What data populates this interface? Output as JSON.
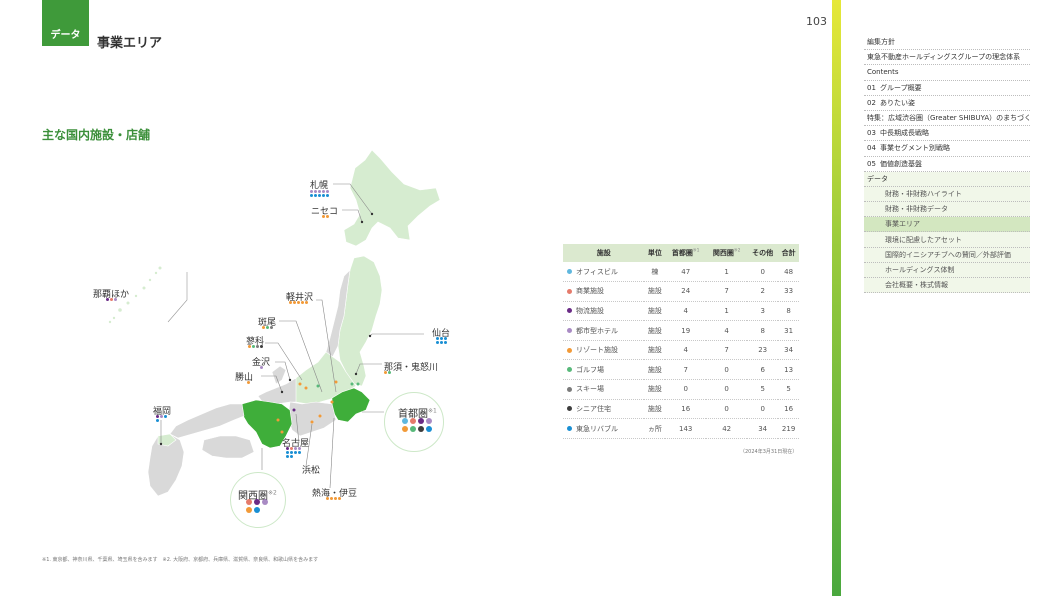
{
  "header": {
    "section_tag": "データ",
    "title": "事業エリア",
    "page_number": "103"
  },
  "subtitle": "主な国内施設・店舗",
  "colors": {
    "office": "#5fb7de",
    "commercial": "#e57b6b",
    "logistics": "#6a2b86",
    "hotel": "#a98bc4",
    "resort": "#f29a38",
    "golf": "#58b97a",
    "ski": "#7b7b7b",
    "senior": "#3d3d3d",
    "rehouse": "#1a8fd3",
    "land": "#d6ecd0",
    "land_highlight": "#3fae3a",
    "land_dark": "#cfcfcf"
  },
  "map": {
    "cities": [
      {
        "name": "札幌",
        "dots": [
          "hotel",
          "hotel",
          "hotel",
          "hotel",
          "hotel",
          "rehouse",
          "rehouse",
          "rehouse",
          "rehouse",
          "rehouse"
        ]
      },
      {
        "name": "ニセコ",
        "dots": [
          "resort",
          "resort"
        ]
      },
      {
        "name": "那覇ほか",
        "dots": [
          "logistics",
          "commercial",
          "hotel"
        ]
      },
      {
        "name": "軽井沢",
        "dots": [
          "resort",
          "resort",
          "resort",
          "resort",
          "resort"
        ]
      },
      {
        "name": "斑尾",
        "dots": [
          "resort",
          "golf",
          "ski"
        ]
      },
      {
        "name": "蓼科",
        "dots": [
          "resort",
          "golf",
          "ski",
          "senior"
        ]
      },
      {
        "name": "金沢",
        "dots": [
          "hotel"
        ]
      },
      {
        "name": "勝山",
        "dots": [
          "resort"
        ]
      },
      {
        "name": "仙台",
        "dots": [
          "rehouse",
          "rehouse",
          "rehouse",
          "rehouse",
          "rehouse",
          "rehouse"
        ]
      },
      {
        "name": "那須・鬼怒川",
        "dots": [
          "resort",
          "golf"
        ]
      },
      {
        "name": "福岡",
        "dots": [
          "logistics",
          "hotel",
          "rehouse",
          "rehouse"
        ]
      },
      {
        "name": "名古屋",
        "dots": [
          "logistics",
          "commercial",
          "hotel",
          "hotel",
          "rehouse",
          "rehouse",
          "rehouse",
          "rehouse",
          "rehouse",
          "rehouse"
        ]
      },
      {
        "name": "浜松",
        "dots": []
      },
      {
        "name": "熱海・伊豆",
        "dots": [
          "resort",
          "resort",
          "resort",
          "resort"
        ]
      }
    ],
    "regions": [
      {
        "name": "首都圏",
        "note": "※1",
        "dots": [
          "office",
          "commercial",
          "logistics",
          "hotel",
          "resort",
          "golf",
          "senior",
          "rehouse"
        ]
      },
      {
        "name": "関西圏",
        "note": "※2",
        "dots": [
          "commercial",
          "logistics",
          "hotel",
          "resort",
          "rehouse"
        ]
      }
    ]
  },
  "table": {
    "headers": [
      "施設",
      "単位",
      "首都圏",
      "関西圏",
      "その他",
      "合計"
    ],
    "header_notes": [
      "",
      "",
      "※1",
      "※2",
      "",
      ""
    ],
    "rows": [
      {
        "color": "office",
        "name": "オフィスビル",
        "unit": "棟",
        "shuto": "47",
        "kansai": "1",
        "other": "0",
        "total": "48"
      },
      {
        "color": "commercial",
        "name": "商業施設",
        "unit": "施設",
        "shuto": "24",
        "kansai": "7",
        "other": "2",
        "total": "33"
      },
      {
        "color": "logistics",
        "name": "物流施設",
        "unit": "施設",
        "shuto": "4",
        "kansai": "1",
        "other": "3",
        "total": "8"
      },
      {
        "color": "hotel",
        "name": "都市型ホテル",
        "unit": "施設",
        "shuto": "19",
        "kansai": "4",
        "other": "8",
        "total": "31"
      },
      {
        "color": "resort",
        "name": "リゾート施設",
        "unit": "施設",
        "shuto": "4",
        "kansai": "7",
        "other": "23",
        "total": "34"
      },
      {
        "color": "golf",
        "name": "ゴルフ場",
        "unit": "施設",
        "shuto": "7",
        "kansai": "0",
        "other": "6",
        "total": "13"
      },
      {
        "color": "ski",
        "name": "スキー場",
        "unit": "施設",
        "shuto": "0",
        "kansai": "0",
        "other": "5",
        "total": "5"
      },
      {
        "color": "senior",
        "name": "シニア住宅",
        "unit": "施設",
        "shuto": "16",
        "kansai": "0",
        "other": "0",
        "total": "16"
      },
      {
        "color": "rehouse",
        "name": "東急リバブル",
        "unit": "ヵ所",
        "shuto": "143",
        "kansai": "42",
        "other": "34",
        "total": "219"
      }
    ],
    "note": "（2024年3月31日現在）"
  },
  "footnote": "※1. 東京都、神奈川県、千葉県、埼玉県を含みます　※2. 大阪府、京都府、兵庫県、滋賀県、奈良県、和歌山県を含みます",
  "sidebar": {
    "items": [
      {
        "num": "",
        "label": "編集方針"
      },
      {
        "num": "",
        "label": "東急不動産ホールディングスグループの理念体系"
      },
      {
        "num": "",
        "label": "Contents"
      },
      {
        "num": "01",
        "label": "グループ概要"
      },
      {
        "num": "02",
        "label": "ありたい姿"
      },
      {
        "num": "",
        "label": "特集：広域渋谷圏（Greater SHIBUYA）のまちづくり"
      },
      {
        "num": "03",
        "label": "中長期成長戦略"
      },
      {
        "num": "04",
        "label": "事業セグメント別戦略"
      },
      {
        "num": "05",
        "label": "価値創造基盤"
      }
    ],
    "data_section": {
      "label": "データ",
      "items": [
        "財務・非財務ハイライト",
        "財務・非財務データ",
        "事業エリア",
        "環境に配慮したアセット",
        "国際的イニシアチブへの賛同／外部評価",
        "ホールディングス体制",
        "会社概要・株式情報"
      ],
      "active_index": 2
    }
  }
}
